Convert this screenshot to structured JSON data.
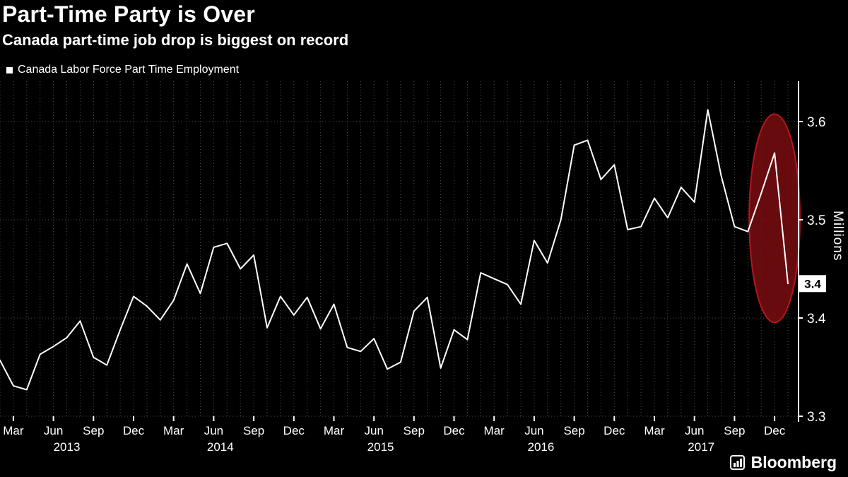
{
  "header": {
    "title": "Part-Time Party is Over",
    "subtitle": "Canada part-time job drop is biggest on record"
  },
  "legend": {
    "label": "Canada Labor Force Part Time Employment",
    "swatch_color": "#ffffff"
  },
  "branding": {
    "logo_text": "Bloomberg"
  },
  "chart_data": {
    "type": "line",
    "title": "Part-Time Party is Over",
    "subtitle": "Canada part-time job drop is biggest on record",
    "ylabel": "Millions",
    "xlabel": "",
    "background": "#000000",
    "grid": "dotted",
    "legend_position": "top-left",
    "ylim": [
      3.3,
      3.64
    ],
    "y_tick_values": [
      3.3,
      3.4,
      3.5,
      3.6
    ],
    "y_tick_labels": [
      "3.3",
      "3.4",
      "3.5",
      "3.6"
    ],
    "x_quarter_labels": {
      "03": "Mar",
      "06": "Jun",
      "09": "Sep",
      "12": "Dec"
    },
    "year_labels": [
      "2013",
      "2014",
      "2015",
      "2016",
      "2017"
    ],
    "end_value_label": "3.4",
    "highlight_ellipse": {
      "from_month": "2017-11",
      "to_month": "2018-01",
      "fill": "#7a0d11",
      "stroke": "#b3161c",
      "meaning": "record part-time job drop"
    },
    "x_months": [
      "2013-02",
      "2013-03",
      "2013-04",
      "2013-05",
      "2013-06",
      "2013-07",
      "2013-08",
      "2013-09",
      "2013-10",
      "2013-11",
      "2013-12",
      "2014-01",
      "2014-02",
      "2014-03",
      "2014-04",
      "2014-05",
      "2014-06",
      "2014-07",
      "2014-08",
      "2014-09",
      "2014-10",
      "2014-11",
      "2014-12",
      "2015-01",
      "2015-02",
      "2015-03",
      "2015-04",
      "2015-05",
      "2015-06",
      "2015-07",
      "2015-08",
      "2015-09",
      "2015-10",
      "2015-11",
      "2015-12",
      "2016-01",
      "2016-02",
      "2016-03",
      "2016-04",
      "2016-05",
      "2016-06",
      "2016-07",
      "2016-08",
      "2016-09",
      "2016-10",
      "2016-11",
      "2016-12",
      "2017-01",
      "2017-02",
      "2017-03",
      "2017-04",
      "2017-05",
      "2017-06",
      "2017-07",
      "2017-08",
      "2017-09",
      "2017-10",
      "2017-11",
      "2017-12",
      "2018-01"
    ],
    "series": [
      {
        "name": "Canada Labor Force Part Time Employment",
        "color": "#ffffff",
        "values": [
          3.357,
          3.331,
          3.327,
          3.363,
          3.371,
          3.38,
          3.397,
          3.36,
          3.352,
          3.388,
          3.422,
          3.412,
          3.398,
          3.418,
          3.455,
          3.425,
          3.472,
          3.476,
          3.45,
          3.464,
          3.39,
          3.422,
          3.403,
          3.421,
          3.389,
          3.414,
          3.37,
          3.366,
          3.379,
          3.348,
          3.355,
          3.407,
          3.421,
          3.349,
          3.388,
          3.378,
          3.446,
          3.44,
          3.434,
          3.414,
          3.479,
          3.456,
          3.5,
          3.576,
          3.581,
          3.541,
          3.556,
          3.49,
          3.493,
          3.522,
          3.502,
          3.533,
          3.518,
          3.612,
          3.545,
          3.493,
          3.488,
          3.527,
          3.568,
          3.435
        ]
      }
    ]
  }
}
